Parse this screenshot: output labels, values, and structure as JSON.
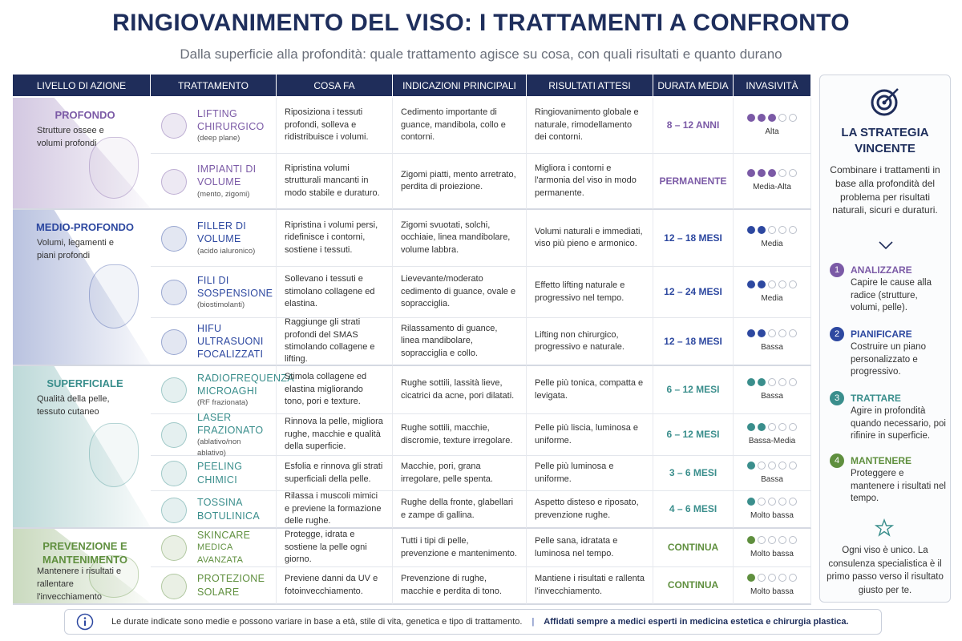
{
  "header": {
    "title": "RINGIOVANIMENTO DEL VISO: I TRATTAMENTI A CONFRONTO",
    "subtitle": "Dalla superficie alla profondità: quale trattamento agisce su cosa, con quali risultati e quanto durano"
  },
  "table": {
    "columns": [
      "LIVELLO DI AZIONE",
      "TRATTAMENTO",
      "COSA FA",
      "INDICAZIONI PRINCIPALI",
      "RISULTATI ATTESI",
      "DURATA MEDIA",
      "INVASIVITÀ"
    ],
    "levels": [
      {
        "name": "PROFONDO",
        "description": "Strutture ossee e volumi profondi",
        "color": "#7b5aa6",
        "treatments": [
          {
            "name": "LIFTING CHIRURGICO",
            "note": "(deep plane)",
            "does": "Riposiziona i tessuti profondi, solleva e ridistribuisce i volumi.",
            "indications": "Cedimento importante di guance, mandibola, collo e contorni.",
            "results": "Ringiovanimento globale e naturale, rimodellamento dei contorni.",
            "duration": "8 – 12 ANNI",
            "dots": 3,
            "invasiveness": "Alta"
          },
          {
            "name": "IMPIANTI DI VOLUME",
            "note": "(mento, zigomi)",
            "does": "Ripristina volumi strutturali mancanti in modo stabile e duraturo.",
            "indications": "Zigomi piatti, mento arretrato, perdita di proiezione.",
            "results": "Migliora i contorni e l'armonia del viso in modo permanente.",
            "duration": "PERMANENTE",
            "dots": 3,
            "invasiveness": "Media-Alta"
          }
        ]
      },
      {
        "name": "MEDIO-PROFONDO",
        "description": "Volumi, legamenti e piani profondi",
        "color": "#2d48a0",
        "treatments": [
          {
            "name": "FILLER DI VOLUME",
            "note": "(acido ialuronico)",
            "does": "Ripristina i volumi persi, ridefinisce i contorni, sostiene i tessuti.",
            "indications": "Zigomi svuotati, solchi, occhiaie, linea mandibolare, volume labbra.",
            "results": "Volumi naturali e immediati, viso più pieno e armonico.",
            "duration": "12 – 18 MESI",
            "dots": 2,
            "invasiveness": "Media"
          },
          {
            "name": "FILI DI SOSPENSIONE",
            "note": "(biostimolanti)",
            "does": "Sollevano i tessuti e stimolano collagene ed elastina.",
            "indications": "Lievevante/moderato cedimento di guance, ovale e sopracciglia.",
            "results": "Effetto lifting naturale e progressivo nel tempo.",
            "duration": "12 – 24 MESI",
            "dots": 2,
            "invasiveness": "Media"
          },
          {
            "name": "HIFU ULTRASUONI FOCALIZZATI",
            "does": "Raggiunge gli strati profondi del SMAS stimolando collagene e lifting.",
            "indications": "Rilassamento di guance, linea mandibolare, sopracciglia e collo.",
            "results": "Lifting non chirurgico, progressivo e naturale.",
            "duration": "12 – 18 MESI",
            "dots": 2,
            "invasiveness": "Bassa"
          }
        ]
      },
      {
        "name": "SUPERFICIALE",
        "description": "Qualità della pelle, tessuto cutaneo",
        "color": "#3a8e8c",
        "treatments": [
          {
            "name": "RADIOFREQUENZA MICROAGHI",
            "note": "(RF frazionata)",
            "does": "Stimola collagene ed elastina migliorando tono, pori e texture.",
            "indications": "Rughe sottili, lassità lieve, cicatrici da acne, pori dilatati.",
            "results": "Pelle più tonica, compatta e levigata.",
            "duration": "6 – 12 MESI",
            "dots": 2,
            "invasiveness": "Bassa"
          },
          {
            "name": "LASER FRAZIONATO",
            "note": "(ablativo/non ablativo)",
            "does": "Rinnova la pelle, migliora rughe, macchie e qualità della superficie.",
            "indications": "Rughe sottili, macchie, discromie, texture irregolare.",
            "results": "Pelle più liscia, luminosa e uniforme.",
            "duration": "6 – 12 MESI",
            "dots": 2,
            "invasiveness": "Bassa-Media"
          },
          {
            "name": "PEELING CHIMICI",
            "does": "Esfolia e rinnova gli strati superficiali della pelle.",
            "indications": "Macchie, pori, grana irregolare, pelle spenta.",
            "results": "Pelle più luminosa e uniforme.",
            "duration": "3 – 6 MESI",
            "dots": 1,
            "invasiveness": "Bassa"
          },
          {
            "name": "TOSSINA BOTULINICA",
            "does": "Rilassa i muscoli mimici e previene la formazione delle rughe.",
            "indications": "Rughe della fronte, glabellari e zampe di gallina.",
            "results": "Aspetto disteso e riposato, prevenzione rughe.",
            "duration": "4 – 6 MESI",
            "dots": 1,
            "invasiveness": "Molto bassa"
          }
        ]
      },
      {
        "name": "PREVENZIONE E MANTENIMENTO",
        "description": "Mantenere i risultati e rallentare l'invecchiamento",
        "color": "#5f8f3e",
        "treatments": [
          {
            "name": "SKINCARE",
            "note": "MEDICA AVANZATA",
            "does": "Protegge, idrata e sostiene la pelle ogni giorno.",
            "indications": "Tutti i tipi di pelle, prevenzione e mantenimento.",
            "results": "Pelle sana, idratata e luminosa nel tempo.",
            "duration": "CONTINUA",
            "dots": 1,
            "invasiveness": "Molto bassa"
          },
          {
            "name": "PROTEZIONE SOLARE",
            "does": "Previene danni da UV e fotoinvecchiamento.",
            "indications": "Prevenzione di rughe, macchie e perdita di tono.",
            "results": "Mantiene i risultati e rallenta l'invecchiamento.",
            "duration": "CONTINUA",
            "dots": 1,
            "invasiveness": "Molto bassa"
          }
        ]
      }
    ]
  },
  "sidebar": {
    "title": "LA STRATEGIA VINCENTE",
    "text": "Combinare i trattamenti in base alla profondità del problema per risultati naturali, sicuri e duraturi.",
    "steps": [
      {
        "number": 1,
        "title": "ANALIZZARE",
        "text": "Capire le cause alla radice (strutture, volumi, pelle).",
        "color": "#7b5aa6"
      },
      {
        "number": 2,
        "title": "PIANIFICARE",
        "text": "Costruire un piano personalizzato e progressivo.",
        "color": "#2d48a0"
      },
      {
        "number": 3,
        "title": "TRATTARE",
        "text": "Agire in profondità quando necessario, poi rifinire in superficie.",
        "color": "#3a8e8c"
      },
      {
        "number": 4,
        "title": "MANTENERE",
        "text": "Proteggere e mantenere i risultati nel tempo.",
        "color": "#5f8f3e"
      }
    ],
    "closing": "Ogni viso è unico. La consulenza specialistica è il primo passo verso il risultato giusto per te."
  },
  "footer": {
    "note": "Le durate indicate sono medie e possono variare in base a età, stile di vita, genetica e tipo di trattamento.",
    "emphasis": "Affidati sempre a medici esperti in medicina estetica e chirurgia plastica."
  }
}
